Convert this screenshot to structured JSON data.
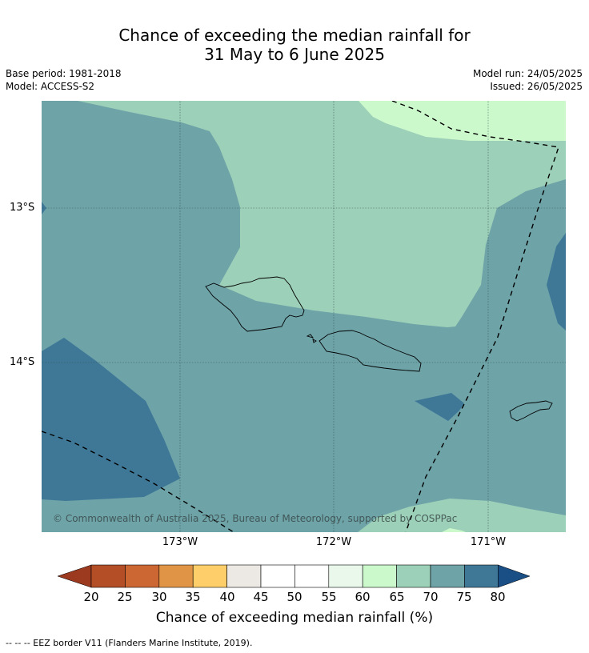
{
  "title": {
    "line1": "Chance of exceeding the median rainfall for",
    "line2": "31 May to 6 June 2025"
  },
  "meta": {
    "base_period": "Base period: 1981-2018",
    "model": "Model: ACCESS-S2",
    "model_run": "Model run: 24/05/2025",
    "issued": "Issued: 26/05/2025"
  },
  "map": {
    "lat_labels": [
      "13°S",
      "14°S"
    ],
    "lon_labels": [
      "173°W",
      "172°W",
      "171°W"
    ],
    "copyright": "© Commonwealth of Australia 2025, Bureau of Meteorology, supported by COSPPac",
    "colors": {
      "band_70_75": "#6ea3a8",
      "band_65_70": "#9dd0b8",
      "band_60_65": "#ccf9cc",
      "band_75_80": "#3f7897",
      "land_outline": "#000000"
    }
  },
  "colorbar": {
    "ticks": [
      "20",
      "25",
      "30",
      "35",
      "40",
      "45",
      "50",
      "55",
      "60",
      "65",
      "70",
      "75",
      "80"
    ],
    "colors": [
      "#9c3a1f",
      "#b34e27",
      "#cc6632",
      "#e09546",
      "#fdce6a",
      "#ece8e4",
      "#ffffff",
      "#ffffff",
      "#e9f8ea",
      "#ccf9cc",
      "#9dd0b8",
      "#6ea3a8",
      "#3f7897",
      "#1a4f86"
    ],
    "label": "Chance of exceeding median rainfall (%)"
  },
  "footer": "--  --  -- EEZ border V11 (Flanders Marine Institute, 2019)."
}
